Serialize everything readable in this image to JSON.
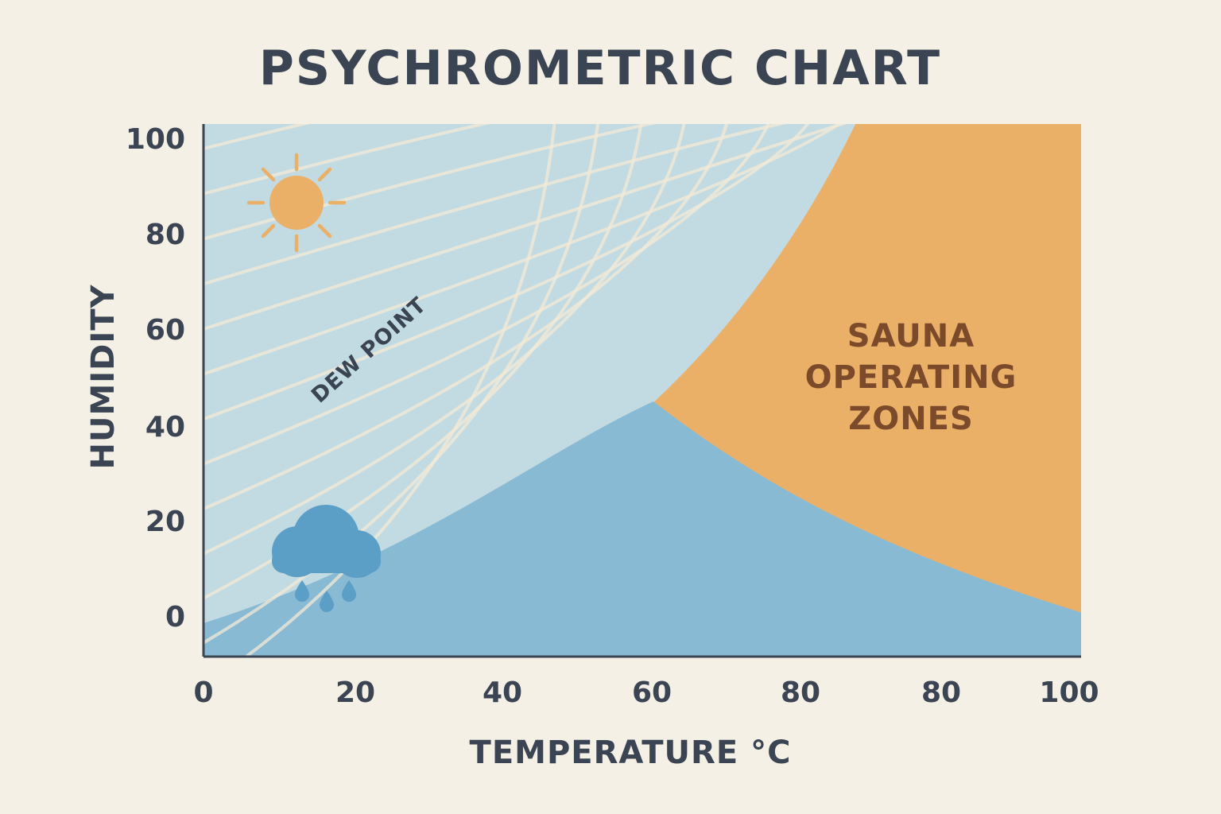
{
  "chart_data": {
    "type": "area",
    "title": "PSYCHROMETRIC CHART",
    "xlabel": "TEMPERATURE °C",
    "ylabel": "HUMIDITY",
    "x_tick_labels": [
      "0",
      "20",
      "40",
      "60",
      "80",
      "80",
      "100"
    ],
    "y_tick_labels": [
      "100",
      "80",
      "60",
      "40",
      "20",
      "0"
    ],
    "xlim": [
      0,
      100
    ],
    "ylim": [
      -8,
      100
    ],
    "grid": false,
    "legend": "none",
    "annotations": {
      "dew_point": "DEW POINT",
      "zone_line1": "SAUNA",
      "zone_line2": "OPERATING",
      "zone_line3": "ZONES"
    },
    "regions": [
      {
        "id": "sauna-zone",
        "color": "#ebb068"
      },
      {
        "id": "humid-band",
        "color": "#89bad3"
      },
      {
        "id": "light-band",
        "color": "#c2dbe3"
      }
    ],
    "curve_count": 13,
    "icons": [
      "sun-icon",
      "rain-cloud-icon"
    ],
    "colors": {
      "background": "#f5f0e6",
      "text": "#3a4452",
      "zone_text": "#7a4a2a",
      "curve": "#f3ead6"
    }
  }
}
